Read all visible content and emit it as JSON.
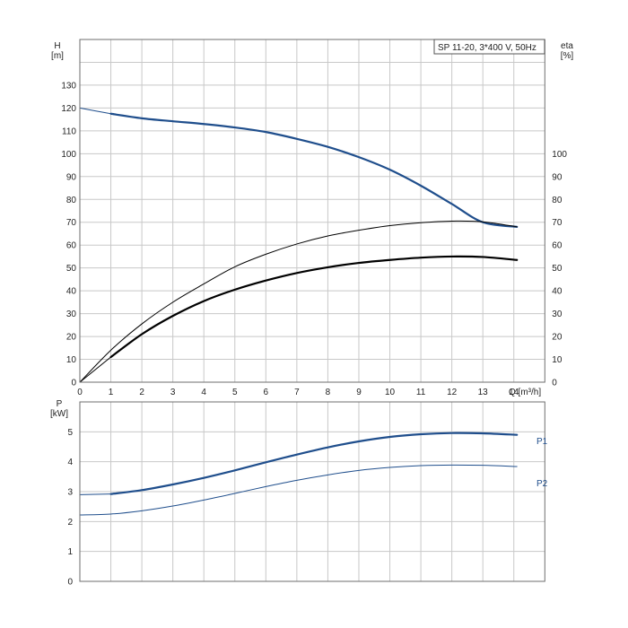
{
  "legend": "SP 11-20, 3*400 V, 50Hz",
  "chart_data": [
    {
      "type": "line",
      "name": "head-efficiency",
      "y_left_label_line1": "H",
      "y_left_label_line2": "[m]",
      "y_right_label_line1": "eta",
      "y_right_label_line2": "[%]",
      "x_label": "Q [m³/h]",
      "xlim": [
        0,
        15
      ],
      "ylim": [
        0,
        150
      ],
      "x_ticks": [
        0,
        1,
        2,
        3,
        4,
        5,
        6,
        7,
        8,
        9,
        10,
        11,
        12,
        13,
        14
      ],
      "y_left_ticks": [
        0,
        10,
        20,
        30,
        40,
        50,
        60,
        70,
        80,
        90,
        100,
        110,
        120,
        130
      ],
      "y_right_ticks": [
        0,
        10,
        20,
        30,
        40,
        50,
        60,
        70,
        80,
        90,
        100
      ],
      "grid": true,
      "series": [
        {
          "key": "H",
          "color": "#1f4e8c",
          "width": 2.2,
          "points": [
            [
              1,
              117.5
            ],
            [
              2,
              115.5
            ],
            [
              3,
              114.2
            ],
            [
              4,
              113
            ],
            [
              5,
              111.5
            ],
            [
              6,
              109.5
            ],
            [
              7,
              106.5
            ],
            [
              8,
              103
            ],
            [
              9,
              98.5
            ],
            [
              10,
              93
            ],
            [
              11,
              86
            ],
            [
              12,
              78
            ],
            [
              13,
              70
            ],
            [
              14.1,
              68
            ]
          ]
        },
        {
          "key": "H_extension",
          "color": "#1f4e8c",
          "width": 1,
          "points": [
            [
              0,
              120
            ],
            [
              1,
              117.5
            ]
          ]
        },
        {
          "key": "eta_thin",
          "color": "#000000",
          "width": 1,
          "points": [
            [
              0,
              0
            ],
            [
              1,
              14
            ],
            [
              2,
              25.5
            ],
            [
              3,
              35
            ],
            [
              4,
              43
            ],
            [
              5,
              50.5
            ],
            [
              6,
              56
            ],
            [
              7,
              60.5
            ],
            [
              8,
              64
            ],
            [
              9,
              66.5
            ],
            [
              10,
              68.5
            ],
            [
              11,
              69.8
            ],
            [
              12,
              70.5
            ],
            [
              13,
              70.2
            ],
            [
              14.1,
              68
            ]
          ]
        },
        {
          "key": "eta_bold",
          "color": "#000000",
          "width": 2.2,
          "points": [
            [
              1,
              11
            ],
            [
              2,
              21
            ],
            [
              3,
              29
            ],
            [
              4,
              35.5
            ],
            [
              5,
              40.5
            ],
            [
              6,
              44.5
            ],
            [
              7,
              47.8
            ],
            [
              8,
              50.3
            ],
            [
              9,
              52.2
            ],
            [
              10,
              53.5
            ],
            [
              11,
              54.5
            ],
            [
              12,
              55
            ],
            [
              13,
              54.8
            ],
            [
              14.1,
              53.5
            ]
          ]
        },
        {
          "key": "eta_bold_extension",
          "color": "#000000",
          "width": 1,
          "points": [
            [
              0,
              0
            ],
            [
              1,
              11
            ]
          ]
        }
      ]
    },
    {
      "type": "line",
      "name": "power",
      "y_label_line1": "P",
      "y_label_line2": "[kW]",
      "xlim": [
        0,
        15
      ],
      "ylim": [
        0,
        6
      ],
      "y_ticks": [
        0,
        1,
        2,
        3,
        4,
        5
      ],
      "grid": true,
      "series": [
        {
          "name": "P1",
          "color": "#1f4e8c",
          "width": 2.2,
          "points": [
            [
              1,
              2.92
            ],
            [
              2,
              3.05
            ],
            [
              3,
              3.24
            ],
            [
              4,
              3.46
            ],
            [
              5,
              3.71
            ],
            [
              6,
              3.98
            ],
            [
              7,
              4.24
            ],
            [
              8,
              4.48
            ],
            [
              9,
              4.68
            ],
            [
              10,
              4.83
            ],
            [
              11,
              4.92
            ],
            [
              12,
              4.96
            ],
            [
              13,
              4.95
            ],
            [
              14.1,
              4.9
            ]
          ]
        },
        {
          "key": "P1_extension",
          "color": "#1f4e8c",
          "width": 1,
          "points": [
            [
              0,
              2.9
            ],
            [
              1,
              2.92
            ]
          ]
        },
        {
          "name": "P2",
          "color": "#1f4e8c",
          "width": 1,
          "points": [
            [
              0,
              2.22
            ],
            [
              1,
              2.25
            ],
            [
              2,
              2.36
            ],
            [
              3,
              2.52
            ],
            [
              4,
              2.72
            ],
            [
              5,
              2.94
            ],
            [
              6,
              3.17
            ],
            [
              7,
              3.38
            ],
            [
              8,
              3.56
            ],
            [
              9,
              3.71
            ],
            [
              10,
              3.81
            ],
            [
              11,
              3.87
            ],
            [
              12,
              3.89
            ],
            [
              13,
              3.88
            ],
            [
              14.1,
              3.84
            ]
          ]
        }
      ]
    }
  ]
}
